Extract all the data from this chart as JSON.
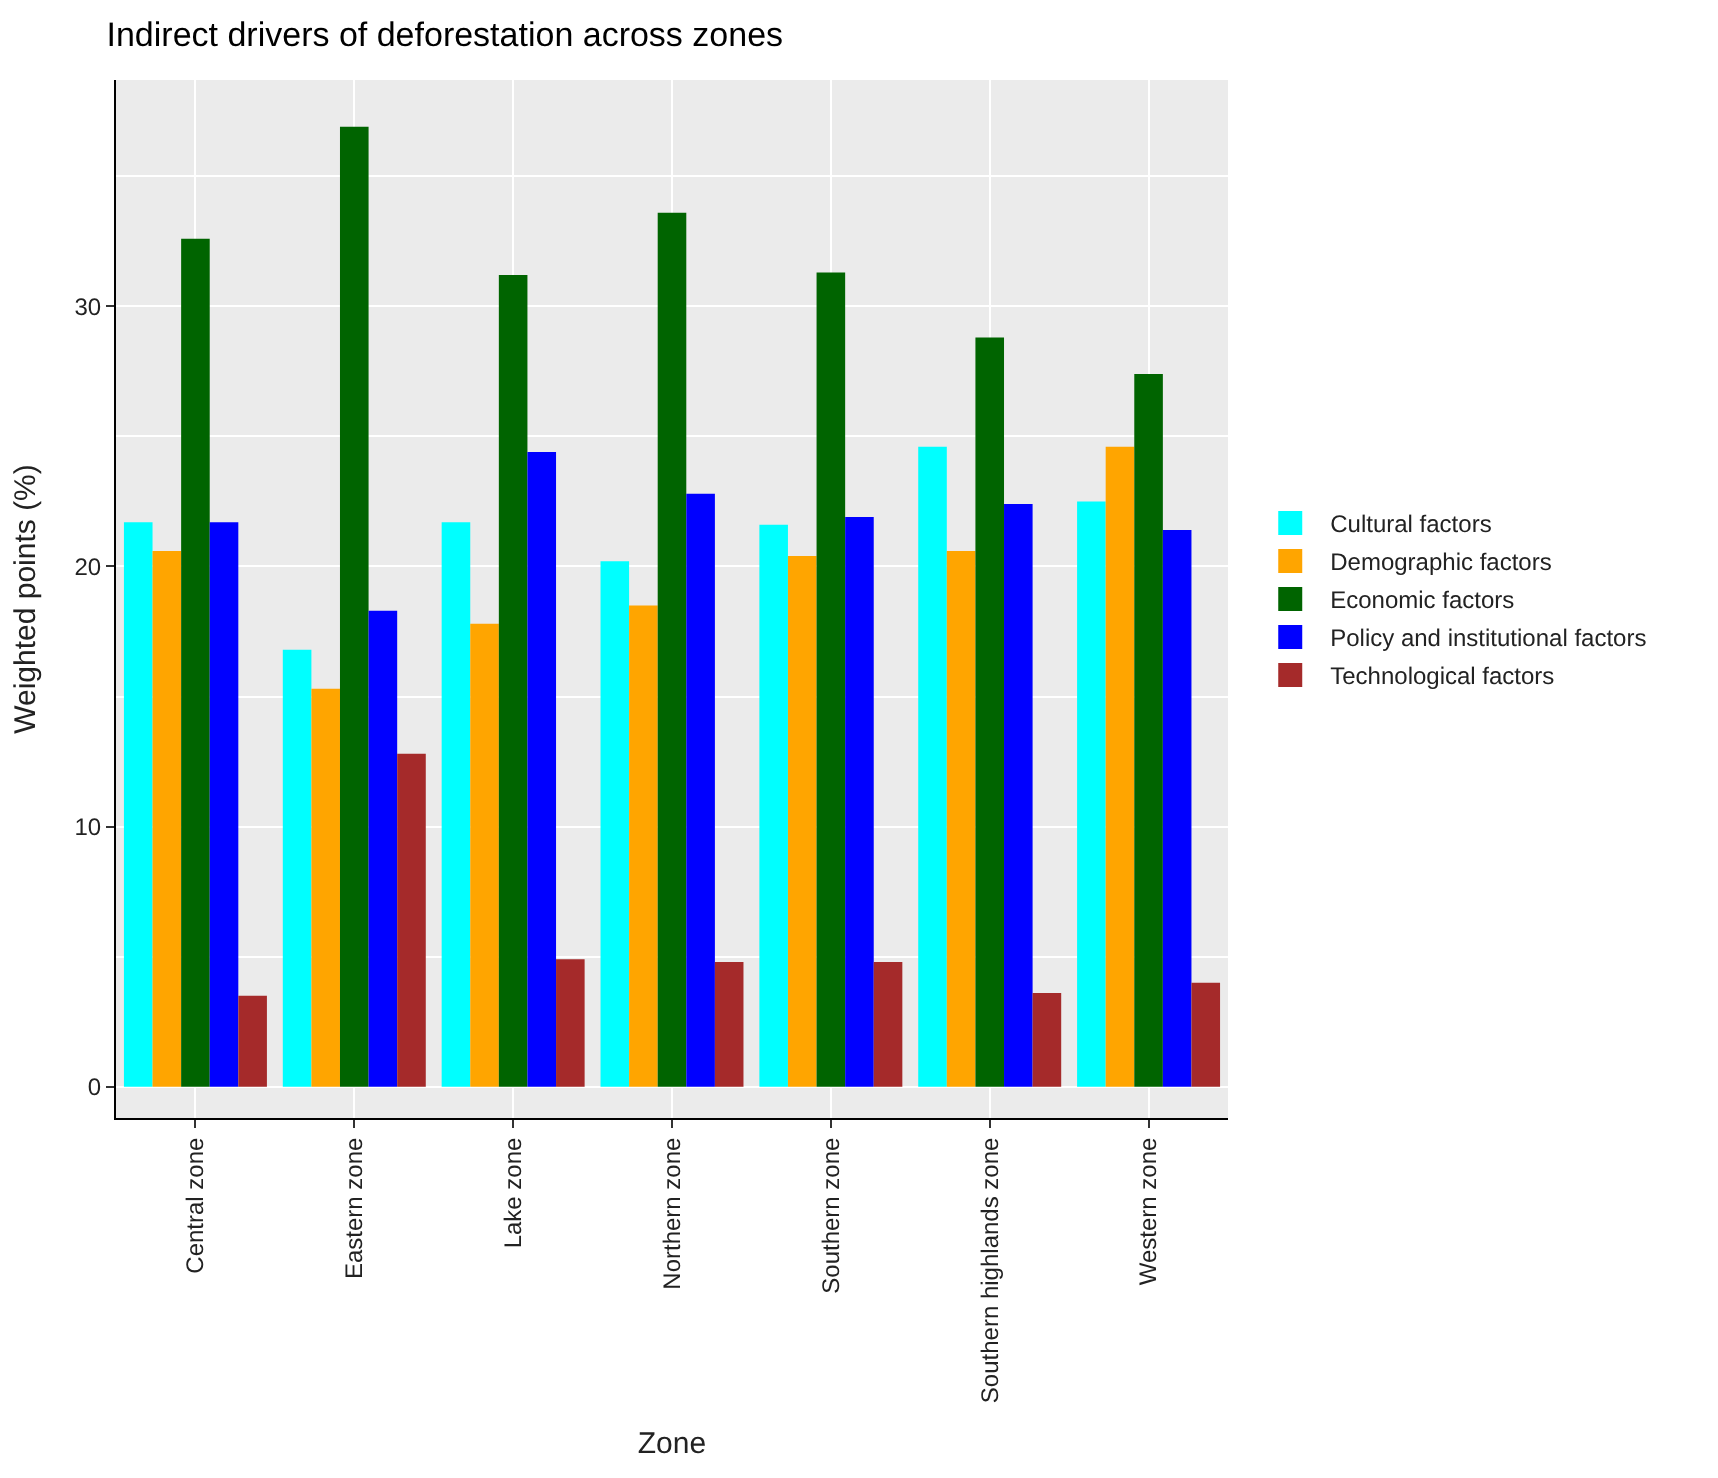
{
  "chart_data": {
    "type": "bar",
    "title": "Indirect drivers of deforestation across zones",
    "xlabel": "Zone",
    "ylabel": "Weighted points (%)",
    "categories": [
      "Central zone",
      "Eastern zone",
      "Lake zone",
      "Northern zone",
      "Southern zone",
      "Southern highlands zone",
      "Western zone"
    ],
    "series": [
      {
        "name": "Cultural factors",
        "color": "#00ffff",
        "values": [
          21.7,
          16.8,
          21.7,
          20.2,
          21.6,
          24.6,
          22.5
        ]
      },
      {
        "name": "Demographic factors",
        "color": "#ffa500",
        "values": [
          20.6,
          15.3,
          17.8,
          18.5,
          20.4,
          20.6,
          24.6
        ]
      },
      {
        "name": "Economic factors",
        "color": "#006400",
        "values": [
          32.6,
          36.9,
          31.2,
          33.6,
          31.3,
          28.8,
          27.4
        ]
      },
      {
        "name": "Policy and institutional factors",
        "color": "#0000ff",
        "values": [
          21.7,
          18.3,
          24.4,
          22.8,
          21.9,
          22.4,
          21.4
        ]
      },
      {
        "name": "Technological factors",
        "color": "#a52a2a",
        "values": [
          3.5,
          12.8,
          4.9,
          4.8,
          4.8,
          3.6,
          4.0
        ]
      }
    ],
    "ylim": [
      -1.2,
      38.7
    ],
    "yticks": [
      0,
      10,
      20,
      30
    ],
    "grid": true,
    "legend": "right"
  }
}
